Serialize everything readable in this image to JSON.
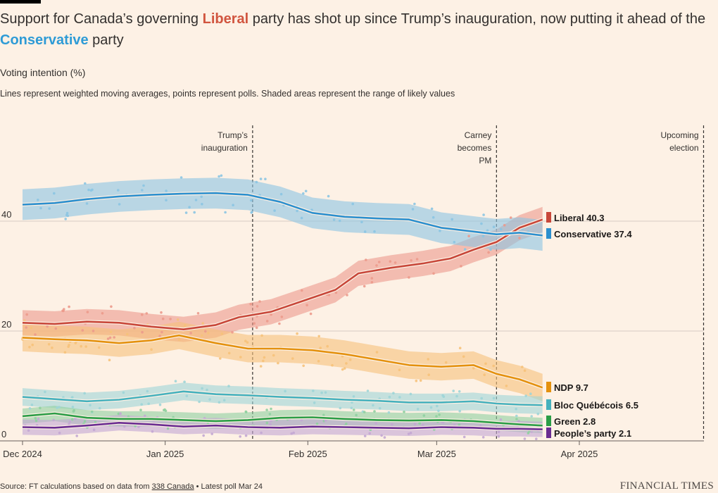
{
  "header": {
    "title_part1": "Support for Canada’s governing ",
    "title_liberal": "Liberal",
    "title_part2": " party has shot up since Trump’s inauguration, now putting it ahead of the ",
    "title_conservative": "Conservative",
    "title_part3": " party",
    "subtitle": "Voting intention (%)",
    "note": "Lines represent weighted moving averages, points represent polls. Shaded areas represent the range of likely values"
  },
  "footer": {
    "source_prefix": "Source: FT calculations based on data from ",
    "source_link": "338 Canada",
    "source_suffix": " • Latest poll Mar 24",
    "brand": "FINANCIAL TIMES"
  },
  "chart_data": {
    "type": "line",
    "ylabel": "",
    "ylim": [
      0,
      50
    ],
    "y_ticks": [
      0,
      20,
      40
    ],
    "x_tick_labels": [
      "Dec 2024",
      "Jan 2025",
      "Feb 2025",
      "Mar 2025",
      "Apr 2025"
    ],
    "x_tick_dates": [
      "2024-12-01",
      "2025-01-01",
      "2025-02-01",
      "2025-03-01",
      "2025-04-01"
    ],
    "xlim": [
      "2024-12-01",
      "2025-04-27"
    ],
    "grid": true,
    "annotations": [
      {
        "date": "2025-01-20",
        "label_lines": [
          "Trump’s",
          "inauguration"
        ]
      },
      {
        "date": "2025-03-14",
        "label_lines": [
          "Carney",
          "becomes",
          "PM"
        ]
      },
      {
        "date": "2025-04-28",
        "label_lines": [
          "Upcoming",
          "election"
        ]
      }
    ],
    "series": [
      {
        "name": "Liberal",
        "latest": "40.3",
        "color": "#c8473a",
        "band": "#ec9a8c",
        "dates": [
          "2024-12-01",
          "2024-12-08",
          "2024-12-15",
          "2024-12-22",
          "2024-12-29",
          "2025-01-05",
          "2025-01-12",
          "2025-01-17",
          "2025-01-24",
          "2025-01-31",
          "2025-02-07",
          "2025-02-12",
          "2025-02-19",
          "2025-02-26",
          "2025-03-04",
          "2025-03-09",
          "2025-03-14",
          "2025-03-19",
          "2025-03-24"
        ],
        "values": [
          21.5,
          21.3,
          21.7,
          21.5,
          20.8,
          20.3,
          21.1,
          22.5,
          23.5,
          25.5,
          27.5,
          30.5,
          31.5,
          32.3,
          33.2,
          34.8,
          36.2,
          38.8,
          40.3
        ],
        "band_width": 2.3
      },
      {
        "name": "Conservative",
        "latest": "37.4",
        "color": "#2b8fce",
        "band": "#8cc5e2",
        "dates": [
          "2024-12-01",
          "2024-12-08",
          "2024-12-15",
          "2024-12-22",
          "2024-12-29",
          "2025-01-05",
          "2025-01-12",
          "2025-01-19",
          "2025-01-26",
          "2025-02-02",
          "2025-02-09",
          "2025-02-16",
          "2025-02-23",
          "2025-03-02",
          "2025-03-09",
          "2025-03-14",
          "2025-03-19",
          "2025-03-24"
        ],
        "values": [
          43.0,
          43.3,
          44.0,
          44.5,
          44.8,
          45.0,
          45.1,
          44.8,
          43.5,
          41.5,
          40.8,
          40.5,
          40.3,
          38.8,
          38.1,
          37.6,
          37.9,
          37.4
        ],
        "band_width": 2.8
      },
      {
        "name": "NDP",
        "latest": "9.7",
        "color": "#e4910e",
        "band": "#f6c27a",
        "dates": [
          "2024-12-01",
          "2024-12-08",
          "2024-12-15",
          "2024-12-22",
          "2024-12-29",
          "2025-01-04",
          "2025-01-12",
          "2025-01-19",
          "2025-01-26",
          "2025-02-02",
          "2025-02-09",
          "2025-02-16",
          "2025-02-23",
          "2025-03-02",
          "2025-03-09",
          "2025-03-14",
          "2025-03-19",
          "2025-03-24"
        ],
        "values": [
          18.8,
          18.5,
          18.3,
          17.8,
          18.3,
          19.2,
          17.8,
          16.8,
          16.8,
          16.5,
          15.8,
          14.8,
          13.8,
          13.5,
          13.8,
          12.2,
          11.2,
          9.7
        ],
        "band_width": 2.5
      },
      {
        "name": "Bloc Québécois",
        "latest": "6.5",
        "color": "#45b1bd",
        "band": "#9ed5d7",
        "dates": [
          "2024-12-01",
          "2024-12-08",
          "2024-12-15",
          "2024-12-22",
          "2024-12-29",
          "2025-01-05",
          "2025-01-12",
          "2025-01-19",
          "2025-01-26",
          "2025-02-02",
          "2025-02-09",
          "2025-02-16",
          "2025-02-23",
          "2025-03-02",
          "2025-03-09",
          "2025-03-14",
          "2025-03-19",
          "2025-03-24"
        ],
        "values": [
          8.0,
          7.6,
          7.2,
          7.5,
          8.2,
          9.0,
          8.5,
          8.3,
          8.0,
          7.8,
          7.5,
          7.3,
          7.0,
          7.0,
          7.2,
          6.8,
          6.6,
          6.5
        ],
        "band_width": 1.6
      },
      {
        "name": "Green",
        "latest": "2.8",
        "color": "#2b9d46",
        "band": "#8fd0a0",
        "dates": [
          "2024-12-01",
          "2024-12-08",
          "2024-12-15",
          "2024-12-22",
          "2024-12-29",
          "2025-01-05",
          "2025-01-12",
          "2025-01-19",
          "2025-01-26",
          "2025-02-02",
          "2025-02-09",
          "2025-02-16",
          "2025-02-23",
          "2025-03-02",
          "2025-03-09",
          "2025-03-14",
          "2025-03-19",
          "2025-03-24"
        ],
        "values": [
          4.5,
          5.0,
          4.2,
          4.0,
          4.0,
          3.8,
          3.6,
          3.8,
          4.2,
          4.3,
          4.0,
          3.8,
          3.7,
          3.8,
          3.6,
          3.3,
          3.0,
          2.8
        ],
        "band_width": 1.4
      },
      {
        "name": "People’s party",
        "latest": "2.1",
        "color": "#6a2c91",
        "band": "#c3a7d3",
        "dates": [
          "2024-12-01",
          "2024-12-08",
          "2024-12-15",
          "2024-12-22",
          "2024-12-29",
          "2025-01-05",
          "2025-01-12",
          "2025-01-19",
          "2025-01-26",
          "2025-02-02",
          "2025-02-09",
          "2025-02-16",
          "2025-02-23",
          "2025-03-02",
          "2025-03-09",
          "2025-03-14",
          "2025-03-19",
          "2025-03-24"
        ],
        "values": [
          2.5,
          2.4,
          2.8,
          3.3,
          3.0,
          2.6,
          2.8,
          2.5,
          2.4,
          2.6,
          2.5,
          2.4,
          2.3,
          2.5,
          2.4,
          2.2,
          2.2,
          2.1
        ],
        "band_width": 1.4
      }
    ]
  }
}
